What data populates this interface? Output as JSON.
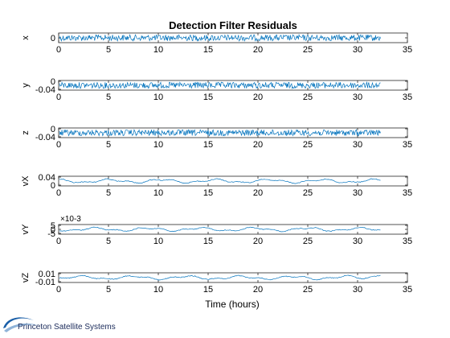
{
  "chart_data": {
    "type": "line",
    "title": "Detection Filter Residuals",
    "xlabel": "Time (hours)",
    "xlim": [
      0,
      35
    ],
    "xticks": [
      "0",
      "5",
      "10",
      "15",
      "20",
      "25",
      "30",
      "35"
    ],
    "line_color": "#0072bd",
    "subplots": [
      {
        "name": "x",
        "ylabel": "x",
        "ytick_labels": [
          "0"
        ],
        "exponent": "",
        "data_end": 32.3,
        "style": "noise"
      },
      {
        "name": "y",
        "ylabel": "y",
        "ytick_labels": [
          "0",
          "-0.04"
        ],
        "exponent": "",
        "data_end": 32.3,
        "style": "noise"
      },
      {
        "name": "z",
        "ylabel": "z",
        "ytick_labels": [
          "0",
          "-0.04"
        ],
        "exponent": "",
        "data_end": 32.3,
        "style": "noise"
      },
      {
        "name": "vX",
        "ylabel": "vX",
        "ytick_labels": [
          "0.04",
          "0"
        ],
        "exponent": "",
        "data_end": 32.3,
        "style": "wave"
      },
      {
        "name": "vY",
        "ylabel": "vY",
        "ytick_labels": [
          "5",
          "0",
          "-5"
        ],
        "exponent": "×10-3",
        "data_end": 32.3,
        "style": "wave"
      },
      {
        "name": "vZ",
        "ylabel": "vZ",
        "ytick_labels": [
          "0.01",
          "-0.01"
        ],
        "exponent": "",
        "data_end": 32.3,
        "style": "wave"
      }
    ]
  },
  "logo": {
    "text": "Princeton Satellite Systems",
    "accent": "#1a5fa8"
  }
}
